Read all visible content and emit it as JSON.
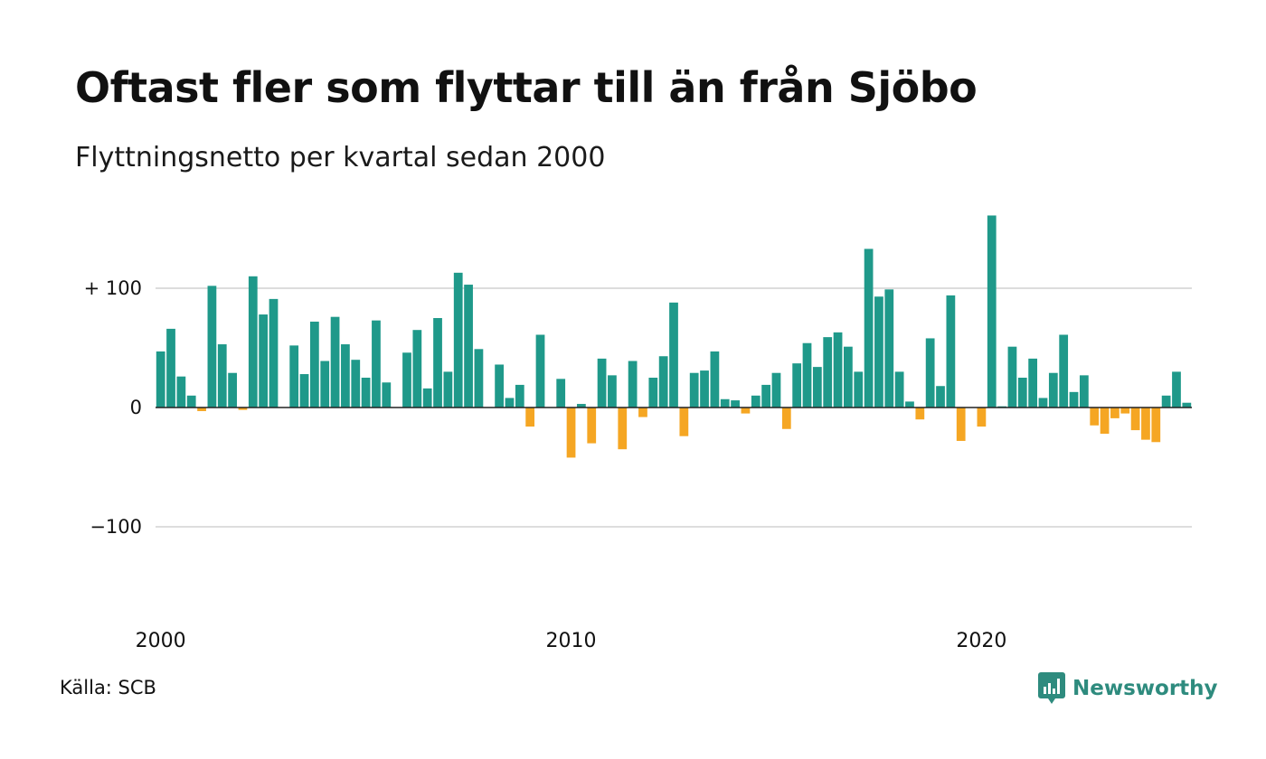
{
  "title": "Oftast fler som flyttar till än från Sjöbo",
  "subtitle": "Flyttningsnetto per kvartal sedan 2000",
  "source": "Källa: SCB",
  "brand": {
    "name": "Newsworthy",
    "logo_icon": "newsworthy-chart-bubble-icon",
    "color": "#2e8b7e"
  },
  "colors": {
    "positive": "#1f998a",
    "negative": "#f5a623",
    "grid": "#dddddd",
    "zero_line": "#222222"
  },
  "chart_data": {
    "type": "bar",
    "x_start": "2000 Q1",
    "frequency": "quarterly",
    "values": [
      47,
      66,
      26,
      10,
      -3,
      102,
      53,
      29,
      -2,
      110,
      78,
      91,
      0,
      52,
      28,
      72,
      39,
      76,
      53,
      40,
      25,
      73,
      21,
      0,
      46,
      65,
      16,
      75,
      30,
      113,
      103,
      49,
      0,
      36,
      8,
      19,
      -16,
      61,
      0,
      24,
      -42,
      3,
      -30,
      41,
      27,
      -35,
      39,
      -8,
      25,
      43,
      88,
      -24,
      29,
      31,
      47,
      7,
      6,
      -5,
      10,
      19,
      29,
      -18,
      37,
      54,
      34,
      59,
      63,
      51,
      30,
      133,
      93,
      99,
      30,
      5,
      -10,
      58,
      18,
      94,
      -28,
      0,
      -16,
      161,
      1,
      51,
      25,
      41,
      8,
      29,
      61,
      13,
      27,
      -15,
      -22,
      -9,
      -5,
      -19,
      -27,
      -29,
      10,
      30,
      4
    ],
    "ylim": [
      -150,
      160
    ],
    "yticks": [
      {
        "value": 100,
        "label": "+ 100"
      },
      {
        "value": 0,
        "label": "0"
      },
      {
        "value": -100,
        "label": "−100"
      }
    ],
    "xticks": [
      {
        "index": 0,
        "label": "2000"
      },
      {
        "index": 40,
        "label": "2010"
      },
      {
        "index": 80,
        "label": "2020"
      }
    ],
    "grid": true
  }
}
